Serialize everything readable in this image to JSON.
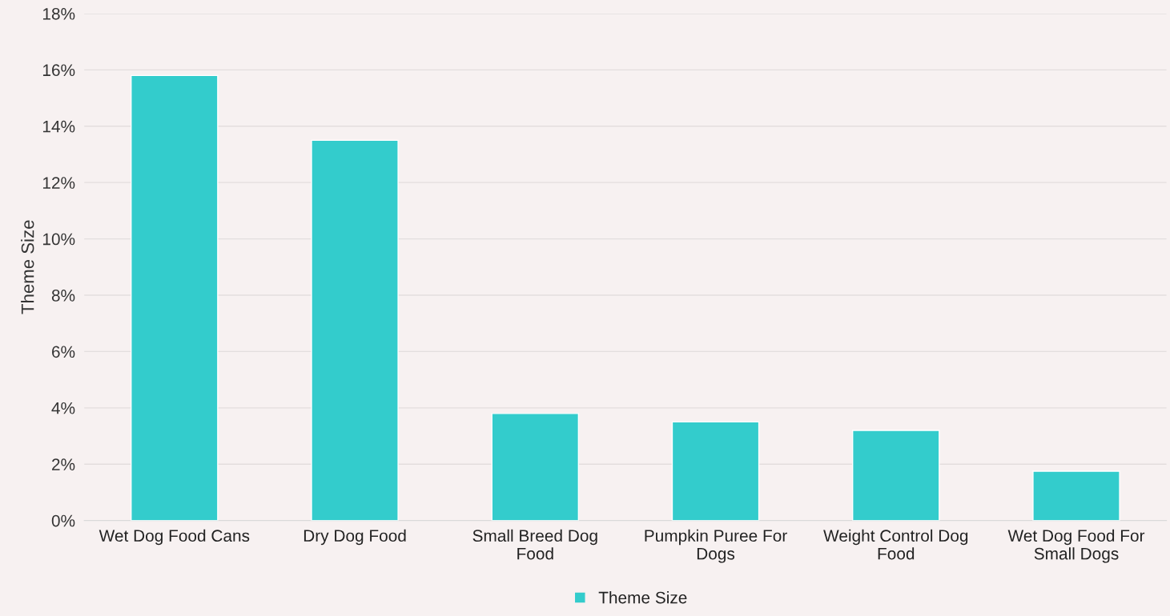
{
  "chart_data": {
    "type": "bar",
    "ylabel": "Theme Size",
    "categories": [
      "Wet Dog Food Cans",
      "Dry Dog Food",
      "Small Breed Dog Food",
      "Pumpkin Puree For Dogs",
      "Weight Control Dog Food",
      "Wet Dog Food For Small Dogs"
    ],
    "series": [
      {
        "name": "Theme Size",
        "color": "#33cccc",
        "values": [
          15.8,
          13.5,
          3.8,
          3.5,
          3.2,
          1.75
        ]
      }
    ],
    "ylim": [
      0,
      18
    ],
    "yticks": [
      {
        "value": 0,
        "label": "0%"
      },
      {
        "value": 2,
        "label": "2%"
      },
      {
        "value": 4,
        "label": "4%"
      },
      {
        "value": 6,
        "label": "6%"
      },
      {
        "value": 8,
        "label": "8%"
      },
      {
        "value": 10,
        "label": "10%"
      },
      {
        "value": 12,
        "label": "12%"
      },
      {
        "value": 14,
        "label": "14%"
      },
      {
        "value": 16,
        "label": "16%"
      },
      {
        "value": 18,
        "label": "18%"
      }
    ],
    "grid": "y",
    "legend": "bottom"
  }
}
